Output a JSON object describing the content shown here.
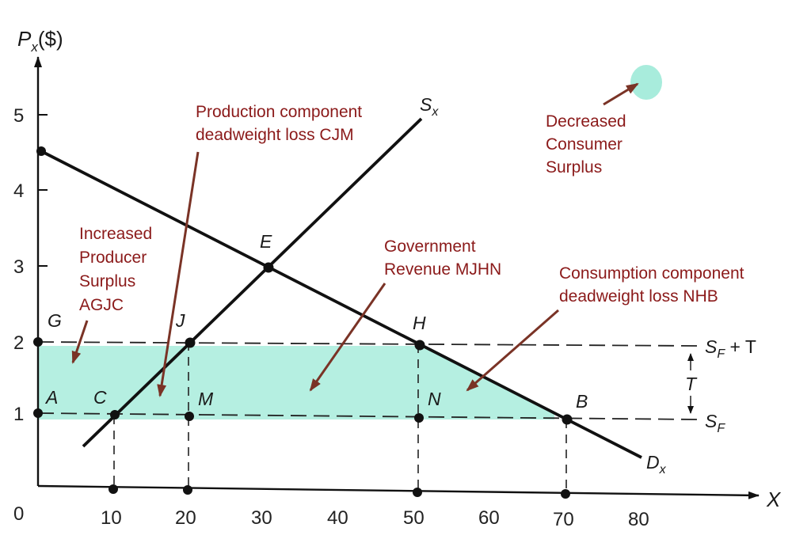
{
  "axes": {
    "y_label_main": "P",
    "y_label_sub": "x",
    "y_label_unit": "($)",
    "x_label": "X",
    "origin": "0",
    "x_ticks": [
      "10",
      "20",
      "30",
      "40",
      "50",
      "60",
      "70",
      "80"
    ],
    "y_ticks": [
      "1",
      "2",
      "3",
      "4",
      "5"
    ]
  },
  "curves": {
    "supply_main": "S",
    "supply_sub": "x",
    "demand_main": "D",
    "demand_sub": "x",
    "sft_main": "S",
    "sft_sub": "F",
    "sft_suffix": " + T",
    "sf_main": "S",
    "sf_sub": "F",
    "tax": "T"
  },
  "points": {
    "A": "A",
    "B": "B",
    "C": "C",
    "E": "E",
    "G": "G",
    "H": "H",
    "J": "J",
    "M": "M",
    "N": "N"
  },
  "annotations": {
    "producer": [
      "Increased",
      "Producer",
      "Surplus",
      "AGJC"
    ],
    "production_dwl": [
      "Production component",
      "deadweight loss CJM"
    ],
    "consumer": [
      "Decreased",
      "Consumer",
      "Surplus"
    ],
    "revenue": [
      "Government",
      "Revenue MJHN"
    ],
    "consumption_dwl": [
      "Consumption component",
      "deadweight loss NHB"
    ]
  },
  "colors": {
    "surplus_fill": "#a8ecdc",
    "annotation": "#8b1a1a",
    "curve": "#111111",
    "arrow": "#7a3326"
  },
  "chart_data": {
    "type": "line",
    "xlabel": "X",
    "ylabel": "Px($)",
    "xlim": [
      0,
      80
    ],
    "ylim": [
      0,
      5
    ],
    "series": [
      {
        "name": "Dx",
        "x": [
          0,
          80
        ],
        "y": [
          4.5,
          0.5
        ]
      },
      {
        "name": "Sx",
        "x": [
          6,
          50
        ],
        "y": [
          0.6,
          5.0
        ]
      },
      {
        "name": "SF + T",
        "x": [
          0,
          82
        ],
        "y": [
          2,
          2
        ]
      },
      {
        "name": "SF",
        "x": [
          0,
          82
        ],
        "y": [
          1,
          1
        ]
      }
    ],
    "points": [
      {
        "label": "E",
        "x": 30,
        "y": 3
      },
      {
        "label": "G",
        "x": 0,
        "y": 2
      },
      {
        "label": "J",
        "x": 20,
        "y": 2
      },
      {
        "label": "H",
        "x": 50,
        "y": 2
      },
      {
        "label": "A",
        "x": 0,
        "y": 1
      },
      {
        "label": "C",
        "x": 10,
        "y": 1
      },
      {
        "label": "M",
        "x": 20,
        "y": 1
      },
      {
        "label": "N",
        "x": 50,
        "y": 1
      },
      {
        "label": "B",
        "x": 70,
        "y": 1
      }
    ]
  }
}
